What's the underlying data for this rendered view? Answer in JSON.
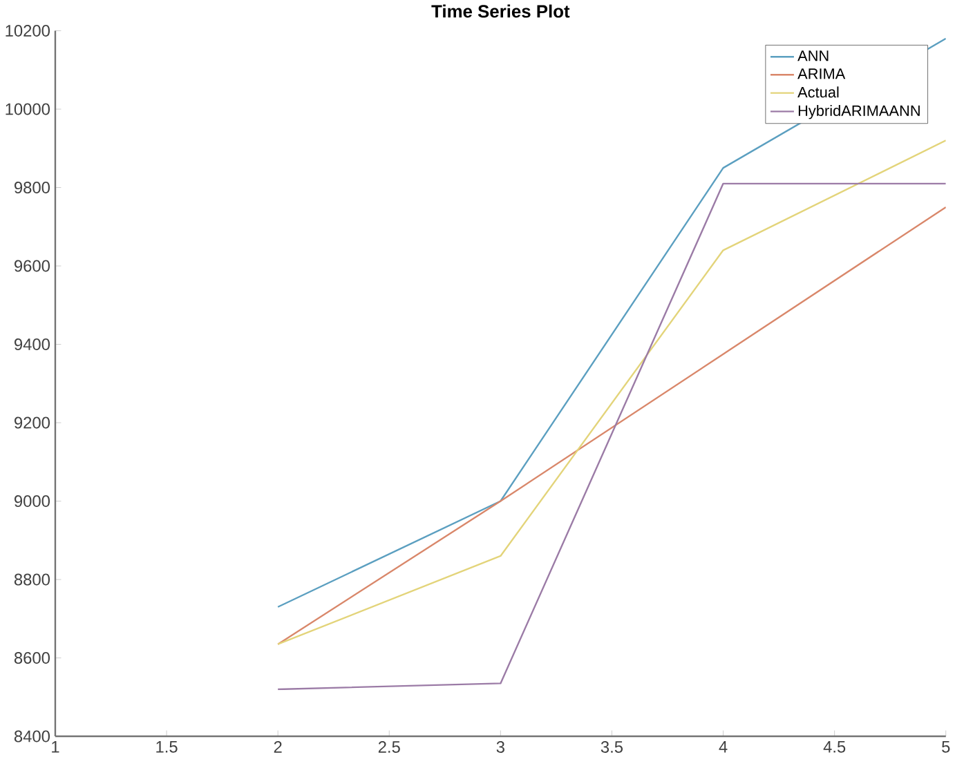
{
  "chart_data": {
    "type": "line",
    "title": "Time Series Plot",
    "x": [
      2,
      3,
      4,
      5
    ],
    "series": [
      {
        "name": "ANN",
        "color": "#5b9fc0",
        "values": [
          8730,
          9000,
          9850,
          10180
        ]
      },
      {
        "name": "ARIMA",
        "color": "#d9876a",
        "values": [
          8635,
          9000,
          9375,
          9750
        ]
      },
      {
        "name": "Actual",
        "color": "#e3d47a",
        "values": [
          8635,
          8860,
          9640,
          9920
        ]
      },
      {
        "name": "HybridARIMAANN",
        "color": "#9b7ba6",
        "values": [
          8520,
          8535,
          9810,
          9810
        ]
      }
    ],
    "xlim": [
      1,
      5
    ],
    "ylim": [
      8400,
      10200
    ],
    "xticks": [
      1,
      1.5,
      2,
      2.5,
      3,
      3.5,
      4,
      4.5,
      5
    ],
    "yticks": [
      8400,
      8600,
      8800,
      9000,
      9200,
      9400,
      9600,
      9800,
      10000,
      10200
    ],
    "legend": "top right",
    "grid": false
  }
}
